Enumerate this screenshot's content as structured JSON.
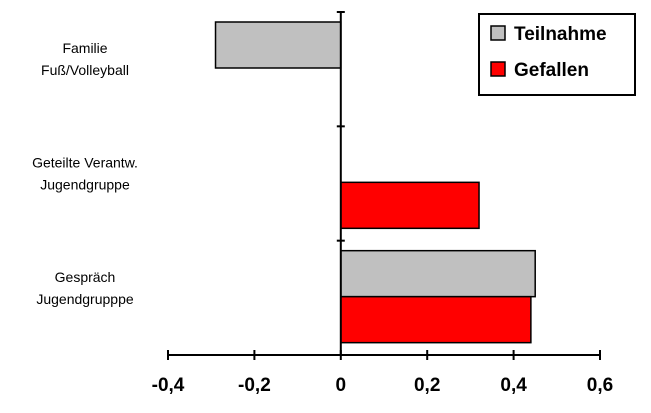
{
  "chart_data": {
    "type": "bar",
    "orientation": "horizontal",
    "categories": [
      "Familie\nFuß/Volleyball",
      "Geteilte Verantw.\nJugendgruppe",
      "Gespräch\nJugendgrupppe"
    ],
    "series": [
      {
        "name": "Teilnahme",
        "color": "#c0c0c0",
        "values": [
          -0.29,
          null,
          0.45
        ]
      },
      {
        "name": "Gefallen",
        "color": "#ff0000",
        "values": [
          null,
          0.32,
          0.44
        ]
      }
    ],
    "xlim": [
      -0.4,
      0.6
    ],
    "xticks": [
      {
        "value": -0.4,
        "label": "-0,4"
      },
      {
        "value": -0.2,
        "label": "-0,2"
      },
      0,
      {
        "value": 0.2,
        "label": "0,2"
      },
      {
        "value": 0.4,
        "label": "0,4"
      },
      {
        "value": 0.6,
        "label": "0,6"
      }
    ],
    "legend": "top-right"
  }
}
